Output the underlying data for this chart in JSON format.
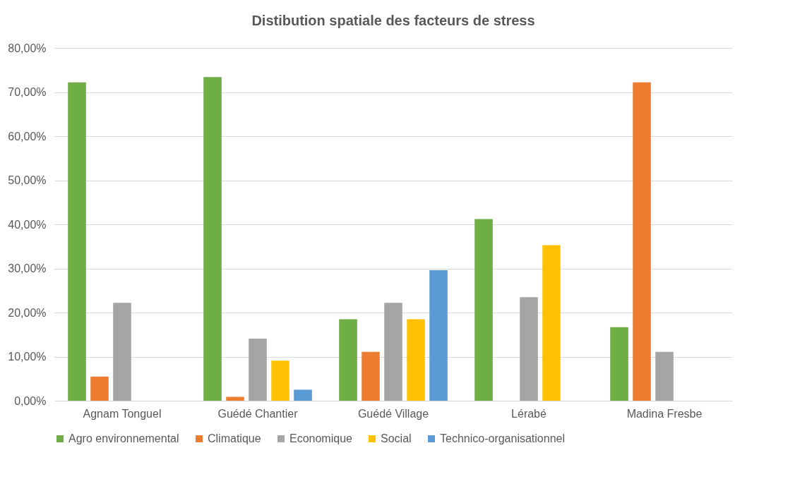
{
  "chart_data": {
    "type": "bar",
    "title": "Distibution spatiale  des facteurs de stress",
    "categories": [
      "Agnam Tonguel",
      "Guédé Chantier",
      "Guédé Village",
      "Lérabé",
      "Madina Fresbe"
    ],
    "series": [
      {
        "name": "Agro environnemental",
        "color": "#70ad47",
        "values": [
          72.2,
          73.4,
          18.5,
          41.2,
          16.7
        ]
      },
      {
        "name": "Climatique",
        "color": "#ed7d31",
        "values": [
          5.5,
          0.9,
          11.1,
          0,
          72.2
        ]
      },
      {
        "name": "Economique",
        "color": "#a5a5a5",
        "values": [
          22.2,
          14.1,
          22.2,
          23.5,
          11.1
        ]
      },
      {
        "name": "Social",
        "color": "#ffc000",
        "values": [
          0,
          9.1,
          18.5,
          35.3,
          0
        ]
      },
      {
        "name": "Technico-organisationnel",
        "color": "#5b9bd5",
        "values": [
          0,
          2.5,
          29.6,
          0,
          0
        ]
      }
    ],
    "ylim": [
      0,
      80
    ],
    "yticks": [
      {
        "value": 0,
        "label": "0,00%"
      },
      {
        "value": 10,
        "label": "10,00%"
      },
      {
        "value": 20,
        "label": "20,00%"
      },
      {
        "value": 30,
        "label": "30,00%"
      },
      {
        "value": 40,
        "label": "40,00%"
      },
      {
        "value": 50,
        "label": "50,00%"
      },
      {
        "value": 60,
        "label": "60,00%"
      },
      {
        "value": 70,
        "label": "70,00%"
      },
      {
        "value": 80,
        "label": "80,00%"
      }
    ],
    "grid": "y",
    "legend": "bottom"
  }
}
